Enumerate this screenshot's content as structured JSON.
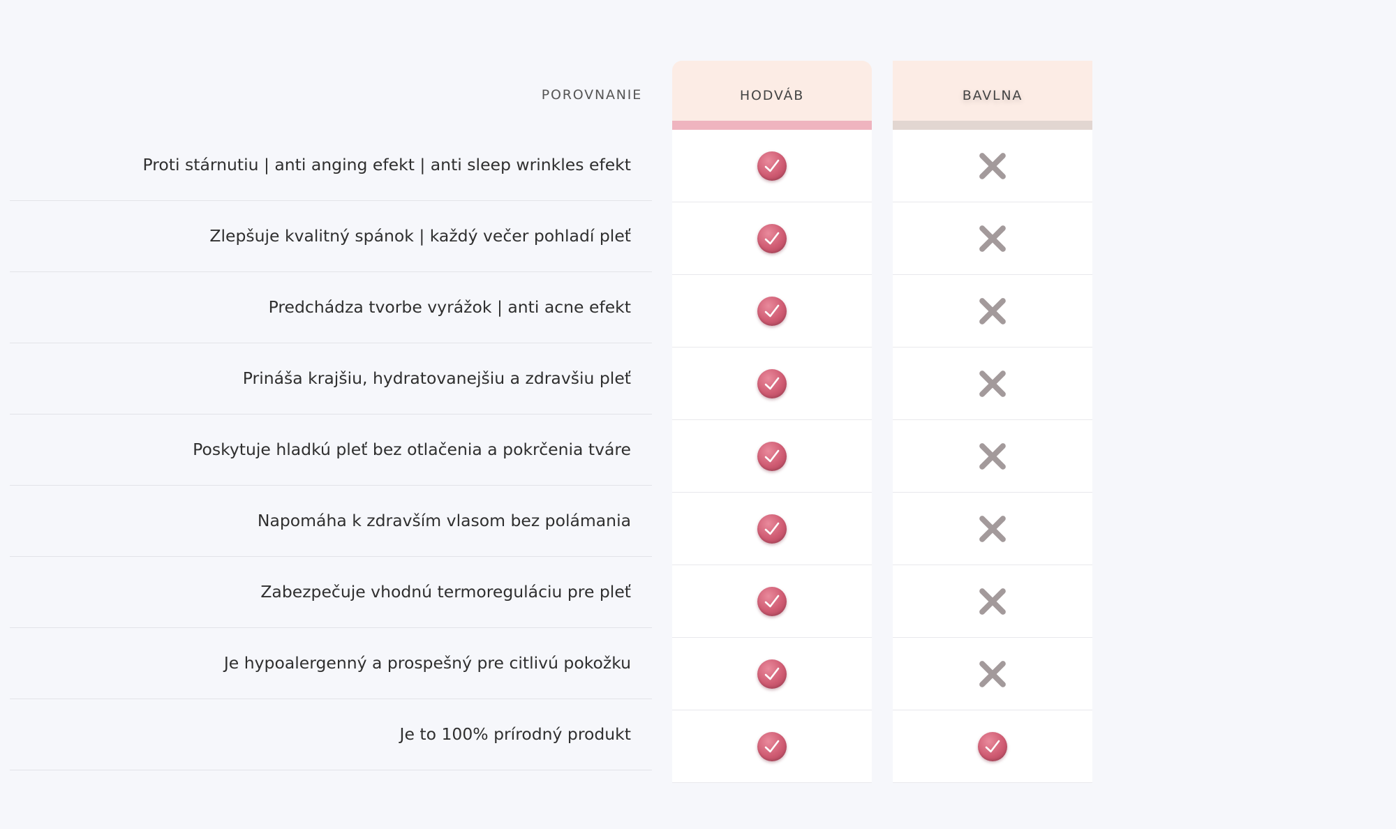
{
  "comparison": {
    "header_label": "POROVNANIE",
    "columns": [
      {
        "label": "HODVÁB"
      },
      {
        "label": "BAVLNA"
      }
    ],
    "rows": [
      {
        "label": "Proti stárnutiu | anti anging efekt | anti sleep wrinkles efekt",
        "values": [
          "check-icon",
          "cross-icon"
        ]
      },
      {
        "label": "Zlepšuje kvalitný spánok | každý večer pohladí pleť",
        "values": [
          "check-icon",
          "cross-icon"
        ]
      },
      {
        "label": "Predchádza tvorbe vyrážok | anti acne efekt",
        "values": [
          "check-icon",
          "cross-icon"
        ]
      },
      {
        "label": "Prináša krajšiu, hydratovanejšiu a zdravšiu pleť",
        "values": [
          "check-icon",
          "cross-icon"
        ]
      },
      {
        "label": "Poskytuje hladkú pleť bez otlačenia a pokrčenia tváre",
        "values": [
          "check-icon",
          "cross-icon"
        ]
      },
      {
        "label": "Napomáha k zdravším vlasom bez polámania",
        "values": [
          "check-icon",
          "cross-icon"
        ]
      },
      {
        "label": "Zabezpečuje vhodnú termoreguláciu pre pleť",
        "values": [
          "check-icon",
          "cross-icon"
        ]
      },
      {
        "label": "Je hypoalergenný a prospešný pre citlivú pokožku",
        "values": [
          "check-icon",
          "cross-icon"
        ]
      },
      {
        "label": "Je to 100% prírodný produkt",
        "values": [
          "check-icon",
          "check-icon"
        ]
      }
    ]
  },
  "colors": {
    "silk_header_bg": "#fcece5",
    "silk_stripe": "#efb4bf",
    "cotton_stripe": "#e2d6d1",
    "check_color": "#cf5b72",
    "cross_color": "#a39a9b"
  }
}
